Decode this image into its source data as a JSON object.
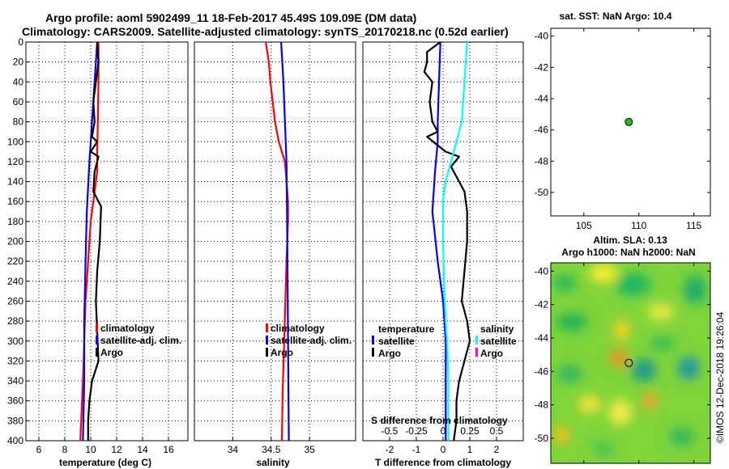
{
  "titles": {
    "line1": "Argo profile: aoml 5902499_11 18-Feb-2017 45.49S 109.09E (DM data)",
    "line2": "Climatology: CARS2009. Satellite-adjusted climatology: synTS_20170218.nc (0.52d earlier)"
  },
  "colors": {
    "climatology": "#ff0000",
    "satellite": "#0000ff",
    "argo": "#000000",
    "sal_sat": "#00ffff",
    "sal_argo": "#ff00ff"
  },
  "chart_data": [
    {
      "id": "temp",
      "type": "line",
      "xlabel": "temperature (deg C)",
      "ylabel": "",
      "xlim": [
        5,
        17.5
      ],
      "ylim": [
        400,
        0
      ],
      "xticks": [
        6,
        8,
        10,
        12,
        14,
        16
      ],
      "xtick_labels": [
        "6",
        "8",
        "10",
        "12",
        "14",
        "16"
      ],
      "yticks": [
        0,
        20,
        40,
        60,
        80,
        100,
        120,
        140,
        160,
        180,
        200,
        220,
        240,
        260,
        280,
        300,
        320,
        340,
        360,
        380,
        400
      ],
      "legend": [
        "climatology",
        "satellite-adj. clim.",
        "Argo"
      ],
      "series": [
        {
          "name": "climatology",
          "color": "#ff0000",
          "points": [
            [
              10.6,
              0
            ],
            [
              10.6,
              40
            ],
            [
              10.55,
              80
            ],
            [
              10.5,
              110
            ],
            [
              10.5,
              130
            ],
            [
              10.3,
              150
            ],
            [
              10.0,
              180
            ],
            [
              9.8,
              220
            ],
            [
              9.6,
              260
            ],
            [
              9.5,
              300
            ],
            [
              9.4,
              340
            ],
            [
              9.3,
              370
            ],
            [
              9.2,
              400
            ]
          ]
        },
        {
          "name": "satellite-adj. clim.",
          "color": "#0000ff",
          "points": [
            [
              10.5,
              0
            ],
            [
              10.3,
              40
            ],
            [
              10.1,
              80
            ],
            [
              9.9,
              120
            ],
            [
              9.7,
              170
            ],
            [
              9.6,
              220
            ],
            [
              9.5,
              280
            ],
            [
              9.5,
              340
            ],
            [
              9.4,
              400
            ]
          ]
        },
        {
          "name": "Argo",
          "color": "#000000",
          "points": [
            [
              10.5,
              0
            ],
            [
              10.6,
              20
            ],
            [
              10.4,
              40
            ],
            [
              10.2,
              60
            ],
            [
              10.3,
              80
            ],
            [
              10.1,
              95
            ],
            [
              10.5,
              100
            ],
            [
              10.0,
              110
            ],
            [
              10.6,
              115
            ],
            [
              10.3,
              130
            ],
            [
              10.2,
              150
            ],
            [
              10.8,
              165
            ],
            [
              10.7,
              200
            ],
            [
              10.5,
              230
            ],
            [
              10.4,
              260
            ],
            [
              10.5,
              290
            ],
            [
              10.6,
              320
            ],
            [
              10.1,
              340
            ],
            [
              9.9,
              360
            ],
            [
              9.8,
              380
            ],
            [
              9.8,
              400
            ]
          ]
        }
      ]
    },
    {
      "id": "sal",
      "type": "line",
      "xlabel": "salinity",
      "ylabel": "",
      "xlim": [
        33.5,
        35.6
      ],
      "ylim": [
        400,
        0
      ],
      "xticks": [
        34,
        34.5,
        35
      ],
      "xtick_labels": [
        "34",
        "34.5",
        "35"
      ],
      "yticks": [],
      "legend": [
        "climatology",
        "satellite-adj. clim.",
        "Argo"
      ],
      "series": [
        {
          "name": "climatology",
          "color": "#ff0000",
          "points": [
            [
              34.43,
              0
            ],
            [
              34.47,
              20
            ],
            [
              34.49,
              40
            ],
            [
              34.52,
              60
            ],
            [
              34.55,
              80
            ],
            [
              34.6,
              100
            ],
            [
              34.68,
              120
            ],
            [
              34.72,
              160
            ],
            [
              34.72,
              180
            ],
            [
              34.7,
              220
            ],
            [
              34.67,
              300
            ],
            [
              34.65,
              350
            ],
            [
              34.64,
              400
            ]
          ]
        },
        {
          "name": "satellite-adj. clim.",
          "color": "#0000ff",
          "points": [
            [
              34.63,
              0
            ],
            [
              34.66,
              40
            ],
            [
              34.68,
              80
            ],
            [
              34.7,
              120
            ],
            [
              34.71,
              200
            ],
            [
              34.72,
              300
            ],
            [
              34.73,
              400
            ]
          ]
        },
        {
          "name": "Argo",
          "color": "#000000",
          "points": []
        }
      ]
    },
    {
      "id": "diff",
      "type": "line",
      "xlabel": "T difference from climatology",
      "ylabel": "",
      "top_label": "S difference from climatology",
      "xlim": [
        -3,
        3
      ],
      "ylim": [
        400,
        0
      ],
      "xticks": [
        -2,
        -1,
        0,
        1,
        2
      ],
      "xtick_labels": [
        "-2",
        "-1",
        "0",
        "1",
        "2"
      ],
      "sticks_label_values": [
        -0.5,
        -0.25,
        0,
        0.25,
        0.5
      ],
      "sticks": [
        "-0.5",
        "-0.25",
        "0",
        "0.25",
        "0.5"
      ],
      "yticks": [],
      "legend": {
        "temperature": "temperature",
        "salinity": "salinity",
        "satellite": "satellite",
        "argo": "Argo"
      },
      "series": [
        {
          "name": "T satellite",
          "color": "#0000ff",
          "points": [
            [
              -0.1,
              0
            ],
            [
              -0.15,
              40
            ],
            [
              -0.2,
              80
            ],
            [
              -0.2,
              100
            ],
            [
              -0.3,
              130
            ],
            [
              -0.4,
              170
            ],
            [
              -0.2,
              220
            ],
            [
              0.0,
              260
            ],
            [
              0.1,
              300
            ],
            [
              0.1,
              340
            ],
            [
              0.1,
              380
            ],
            [
              0.1,
              400
            ]
          ]
        },
        {
          "name": "T Argo",
          "color": "#000000",
          "points": [
            [
              -0.1,
              0
            ],
            [
              -0.6,
              10
            ],
            [
              -0.6,
              20
            ],
            [
              -0.7,
              30
            ],
            [
              -0.4,
              40
            ],
            [
              -0.5,
              60
            ],
            [
              -0.4,
              80
            ],
            [
              -0.2,
              90
            ],
            [
              -0.6,
              95
            ],
            [
              0.1,
              110
            ],
            [
              0.6,
              115
            ],
            [
              0.3,
              125
            ],
            [
              0.6,
              140
            ],
            [
              0.8,
              150
            ],
            [
              0.9,
              170
            ],
            [
              0.9,
              200
            ],
            [
              0.8,
              230
            ],
            [
              0.7,
              260
            ],
            [
              0.9,
              280
            ],
            [
              1.0,
              300
            ],
            [
              0.8,
              320
            ],
            [
              0.6,
              340
            ],
            [
              0.5,
              360
            ],
            [
              0.5,
              380
            ],
            [
              0.4,
              400
            ]
          ]
        },
        {
          "name": "S satellite",
          "color": "#00ffff",
          "points": [
            [
              0.9,
              0
            ],
            [
              0.8,
              40
            ],
            [
              0.7,
              80
            ],
            [
              0.5,
              100
            ],
            [
              0.3,
              120
            ],
            [
              0.1,
              140
            ],
            [
              0.0,
              160
            ],
            [
              0.0,
              200
            ],
            [
              0.05,
              250
            ],
            [
              0.1,
              280
            ],
            [
              0.15,
              300
            ],
            [
              0.2,
              340
            ],
            [
              0.2,
              400
            ]
          ]
        },
        {
          "name": "S Argo",
          "color": "#ff00ff",
          "points": []
        }
      ]
    },
    {
      "id": "sst",
      "type": "scatter",
      "title": "sat. SST: NaN Argo: 10.4",
      "xlim": [
        102,
        116.5
      ],
      "ylim": [
        -51.5,
        -39.5
      ],
      "xticks": [
        105,
        110,
        115
      ],
      "xtick_labels": [
        "105",
        "110",
        "115"
      ],
      "yticks": [
        -40,
        -42,
        -44,
        -46,
        -48,
        -50
      ],
      "ytick_labels": [
        "-40",
        "-42",
        "-44",
        "-46",
        "-48",
        "-50"
      ],
      "points": [
        {
          "x": 109.09,
          "y": -45.49
        }
      ]
    },
    {
      "id": "sla",
      "type": "heatmap",
      "title_line1": "Altim. SLA: 0.13",
      "title_line2": "Argo h1000: NaN h2000: NaN",
      "xlim": [
        102,
        116.5
      ],
      "ylim": [
        -51.5,
        -39.5
      ],
      "xticks": [
        105,
        110,
        115
      ],
      "xtick_labels": [
        "105",
        "110",
        "115"
      ],
      "yticks": [
        -40,
        -42,
        -44,
        -46,
        -48,
        -50
      ],
      "ytick_labels": [
        "-40",
        "-42",
        "-44",
        "-46",
        "-48",
        "-50"
      ],
      "points": [
        {
          "x": 109.09,
          "y": -45.49
        }
      ]
    }
  ],
  "credit": "©IMOS 12-Dec-2018 19:26:04"
}
